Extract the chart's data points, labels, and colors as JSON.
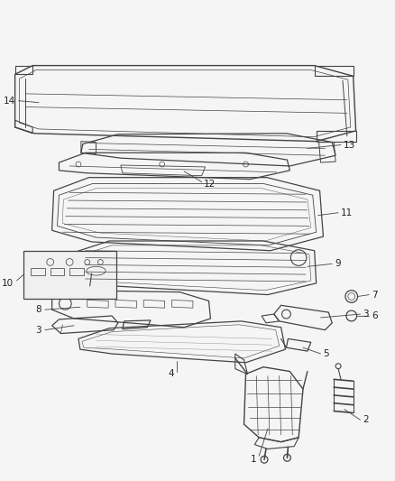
{
  "bg_color": "#f5f5f5",
  "line_color": "#444444",
  "text_color": "#222222",
  "fig_width": 4.38,
  "fig_height": 5.33,
  "dpi": 100
}
